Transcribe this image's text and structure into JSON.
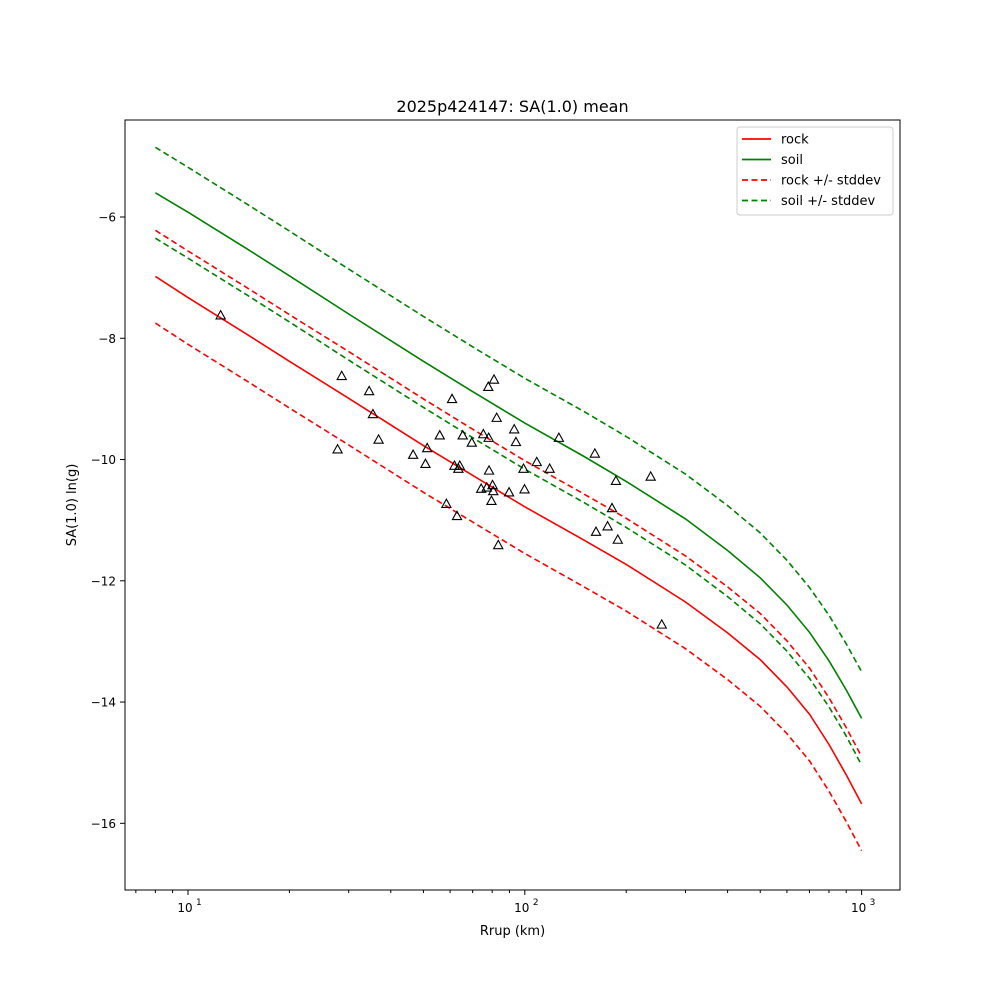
{
  "chart_data": {
    "type": "line",
    "title": "2025p424147: SA(1.0) mean",
    "xlabel": "Rrup (km)",
    "ylabel": "SA(1.0) ln(g)",
    "xscale": "log",
    "xlim": [
      6.5,
      1300
    ],
    "ylim": [
      -17.1,
      -4.4
    ],
    "grid": false,
    "legend_position": "top-right",
    "x_ticks": [
      {
        "value": 10,
        "label": "10",
        "sup": "1"
      },
      {
        "value": 100,
        "label": "10",
        "sup": "2"
      },
      {
        "value": 1000,
        "label": "10",
        "sup": "3"
      }
    ],
    "y_ticks": [
      -6,
      -8,
      -10,
      -12,
      -14,
      -16
    ],
    "y_tick_labels": [
      "−6",
      "−8",
      "−10",
      "−12",
      "−14",
      "−16"
    ],
    "series": [
      {
        "name": "rock",
        "color": "#ff0000",
        "style": "solid",
        "x": [
          8,
          10,
          15,
          20,
          30,
          50,
          70,
          100,
          150,
          200,
          300,
          400,
          500,
          600,
          700,
          800,
          900,
          1000
        ],
        "y": [
          -6.98,
          -7.33,
          -7.94,
          -8.38,
          -8.99,
          -9.77,
          -10.26,
          -10.78,
          -11.33,
          -11.73,
          -12.35,
          -12.86,
          -13.3,
          -13.75,
          -14.2,
          -14.7,
          -15.2,
          -15.68
        ]
      },
      {
        "name": "soil",
        "color": "#008000",
        "style": "solid",
        "x": [
          8,
          10,
          15,
          20,
          30,
          50,
          70,
          100,
          150,
          200,
          300,
          400,
          500,
          600,
          700,
          800,
          900,
          1000
        ],
        "y": [
          -5.6,
          -5.92,
          -6.53,
          -6.97,
          -7.6,
          -8.38,
          -8.88,
          -9.4,
          -9.95,
          -10.36,
          -10.98,
          -11.5,
          -11.95,
          -12.4,
          -12.85,
          -13.32,
          -13.8,
          -14.27
        ]
      },
      {
        "name": "rock +/- stddev",
        "color": "#ff0000",
        "style": "dashed",
        "x": [
          8,
          10,
          15,
          20,
          30,
          50,
          70,
          100,
          150,
          200,
          300,
          400,
          500,
          600,
          700,
          800,
          900,
          1000
        ],
        "y": [
          -6.22,
          -6.56,
          -7.17,
          -7.61,
          -8.22,
          -9.0,
          -9.5,
          -10.02,
          -10.57,
          -10.97,
          -11.59,
          -12.1,
          -12.54,
          -12.99,
          -13.44,
          -13.93,
          -14.42,
          -14.9
        ]
      },
      {
        "series_group": "rock +/- stddev",
        "color": "#ff0000",
        "style": "dashed",
        "x": [
          8,
          10,
          15,
          20,
          30,
          50,
          70,
          100,
          150,
          200,
          300,
          400,
          500,
          600,
          700,
          800,
          900,
          1000
        ],
        "y": [
          -7.75,
          -8.1,
          -8.71,
          -9.15,
          -9.76,
          -10.54,
          -11.03,
          -11.55,
          -12.1,
          -12.5,
          -13.12,
          -13.63,
          -14.07,
          -14.52,
          -14.97,
          -15.47,
          -15.97,
          -16.45
        ]
      },
      {
        "series_group": "soil +/- stddev",
        "color": "#008000",
        "style": "dashed",
        "x": [
          8,
          10,
          15,
          20,
          30,
          50,
          70,
          100,
          150,
          200,
          300,
          400,
          500,
          600,
          700,
          800,
          900,
          1000
        ],
        "y": [
          -4.85,
          -5.18,
          -5.79,
          -6.23,
          -6.86,
          -7.64,
          -8.14,
          -8.66,
          -9.21,
          -9.62,
          -10.24,
          -10.76,
          -11.21,
          -11.66,
          -12.11,
          -12.57,
          -13.04,
          -13.5
        ]
      },
      {
        "name": "soil +/- stddev",
        "color": "#008000",
        "style": "dashed",
        "x": [
          8,
          10,
          15,
          20,
          30,
          50,
          70,
          100,
          150,
          200,
          300,
          400,
          500,
          600,
          700,
          800,
          900,
          1000
        ],
        "y": [
          -6.35,
          -6.68,
          -7.29,
          -7.73,
          -8.36,
          -9.14,
          -9.64,
          -10.16,
          -10.71,
          -11.12,
          -11.74,
          -12.26,
          -12.71,
          -13.16,
          -13.61,
          -14.08,
          -14.56,
          -15.04
        ]
      }
    ],
    "observations": {
      "marker": "triangle",
      "points": [
        {
          "x": 12.5,
          "y": -7.62
        },
        {
          "x": 27.8,
          "y": -9.83
        },
        {
          "x": 28.6,
          "y": -8.62
        },
        {
          "x": 34.5,
          "y": -8.87
        },
        {
          "x": 35.4,
          "y": -9.25
        },
        {
          "x": 36.8,
          "y": -9.67
        },
        {
          "x": 46.6,
          "y": -9.92
        },
        {
          "x": 50.7,
          "y": -10.07
        },
        {
          "x": 51.3,
          "y": -9.81
        },
        {
          "x": 55.9,
          "y": -9.6
        },
        {
          "x": 58.5,
          "y": -10.73
        },
        {
          "x": 60.8,
          "y": -9.0
        },
        {
          "x": 61.8,
          "y": -10.1
        },
        {
          "x": 62.9,
          "y": -10.93
        },
        {
          "x": 63.5,
          "y": -10.15
        },
        {
          "x": 64.1,
          "y": -10.1
        },
        {
          "x": 65.4,
          "y": -9.6
        },
        {
          "x": 69.6,
          "y": -9.72
        },
        {
          "x": 74.2,
          "y": -10.48
        },
        {
          "x": 75.3,
          "y": -9.58
        },
        {
          "x": 77.1,
          "y": -10.46
        },
        {
          "x": 77.9,
          "y": -8.8
        },
        {
          "x": 78.1,
          "y": -9.64
        },
        {
          "x": 78.3,
          "y": -10.18
        },
        {
          "x": 79.6,
          "y": -10.68
        },
        {
          "x": 80.2,
          "y": -10.42
        },
        {
          "x": 80.6,
          "y": -10.52
        },
        {
          "x": 81.0,
          "y": -8.68
        },
        {
          "x": 82.5,
          "y": -9.31
        },
        {
          "x": 83.4,
          "y": -11.41
        },
        {
          "x": 89.8,
          "y": -10.54
        },
        {
          "x": 93.0,
          "y": -9.5
        },
        {
          "x": 94.1,
          "y": -9.71
        },
        {
          "x": 99.1,
          "y": -10.15
        },
        {
          "x": 99.8,
          "y": -10.49
        },
        {
          "x": 108.5,
          "y": -10.04
        },
        {
          "x": 118.5,
          "y": -10.15
        },
        {
          "x": 126.2,
          "y": -9.64
        },
        {
          "x": 161.4,
          "y": -9.9
        },
        {
          "x": 162.7,
          "y": -11.19
        },
        {
          "x": 176.1,
          "y": -11.1
        },
        {
          "x": 181.5,
          "y": -10.8
        },
        {
          "x": 186.4,
          "y": -10.35
        },
        {
          "x": 188.8,
          "y": -11.32
        },
        {
          "x": 236.4,
          "y": -10.28
        },
        {
          "x": 255.0,
          "y": -12.72
        }
      ]
    }
  }
}
